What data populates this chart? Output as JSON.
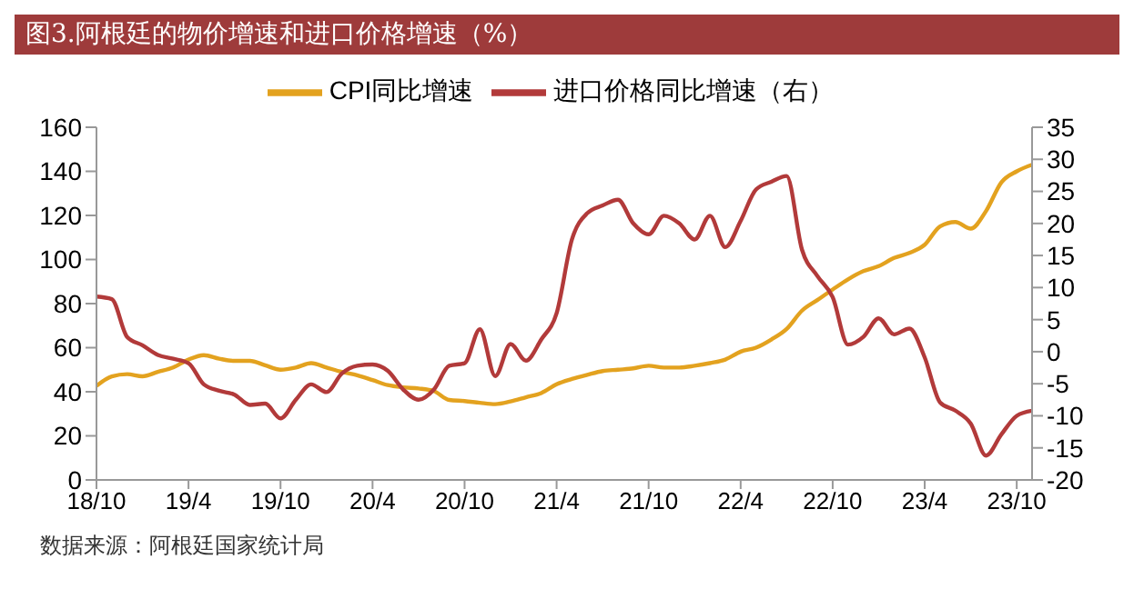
{
  "chart_data": {
    "type": "line",
    "title": "图3.阿根廷的物价增速和进口价格增速（%）",
    "categories": [
      "18/10",
      null,
      null,
      null,
      null,
      null,
      "19/4",
      null,
      null,
      null,
      null,
      null,
      "19/10",
      null,
      null,
      null,
      null,
      null,
      "20/4",
      null,
      null,
      null,
      null,
      null,
      "20/10",
      null,
      null,
      null,
      null,
      null,
      "21/4",
      null,
      null,
      null,
      null,
      null,
      "21/10",
      null,
      null,
      null,
      null,
      null,
      "22/4",
      null,
      null,
      null,
      null,
      null,
      "22/10",
      null,
      null,
      null,
      null,
      null,
      "23/4",
      null,
      null,
      null,
      null,
      null,
      "23/10",
      null
    ],
    "series": [
      {
        "name": "CPI同比增速",
        "color": "#e3a21f",
        "values": [
          42.7,
          47,
          48,
          47,
          49,
          51,
          54.6,
          56.6,
          55,
          54,
          54,
          52,
          50,
          51,
          53,
          51,
          49,
          47.5,
          45.3,
          43,
          42,
          41.5,
          40.3,
          36.3,
          35.8,
          35,
          34.4,
          35.6,
          37.5,
          39.4,
          43.4,
          45.8,
          47.7,
          49.4,
          50,
          50.6,
          51.8,
          51,
          51,
          51.8,
          53,
          54.6,
          58.2,
          60,
          63.7,
          68.5,
          76.8,
          81.6,
          86.4,
          91,
          94.7,
          97,
          100.7,
          103,
          106.7,
          115,
          117,
          114,
          122,
          135,
          140,
          143
        ]
      },
      {
        "name": "进口价格同比增速（右）",
        "color": "#b23a3a",
        "axis": "y2",
        "values": [
          8.6,
          8.2,
          2.3,
          1.0,
          -0.5,
          -1.1,
          -1.8,
          -5.1,
          -6.1,
          -6.7,
          -8.3,
          -8.1,
          -10.4,
          -7.5,
          -5.1,
          -6.3,
          -3.4,
          -2.2,
          -2.0,
          -3.0,
          -5.9,
          -7.5,
          -5.9,
          -2.2,
          -1.8,
          3.5,
          -3.8,
          1.2,
          -1.4,
          1.9,
          6.0,
          17.5,
          21.6,
          22.8,
          23.7,
          20,
          18.3,
          21.2,
          20,
          17.5,
          21.2,
          16.3,
          20.4,
          25.3,
          26.5,
          27.4,
          15.9,
          11.8,
          8.5,
          1.1,
          2.3,
          5.2,
          2.7,
          3.6,
          -0.9,
          -7.9,
          -9.2,
          -11.2,
          -16.2,
          -12.9,
          -10,
          -9.2
        ]
      }
    ],
    "ylim": [
      0,
      160
    ],
    "yticks": [
      0,
      20,
      40,
      60,
      80,
      100,
      120,
      140,
      160
    ],
    "y2lim": [
      -20,
      35
    ],
    "y2ticks": [
      -20,
      -15,
      -10,
      -5,
      0,
      5,
      10,
      15,
      20,
      25,
      30,
      35
    ],
    "legend": "top",
    "grid": false,
    "annotations": [
      "数据来源：阿根廷国家统计局"
    ]
  }
}
